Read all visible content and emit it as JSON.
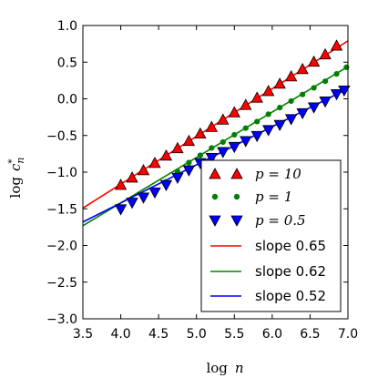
{
  "chart_data": {
    "type": "scatter",
    "xlabel": "log  n",
    "ylabel": "log c*n",
    "xlim": [
      3.5,
      7.0
    ],
    "ylim": [
      -3.0,
      1.0
    ],
    "xticks": [
      "3.5",
      "4.0",
      "4.5",
      "5.0",
      "5.5",
      "6.0",
      "6.5",
      "7.0"
    ],
    "yticks": [
      "1.0",
      "0.5",
      "0.0",
      "−0.5",
      "−1.0",
      "−1.5",
      "−2.0",
      "−2.5",
      "−3.0"
    ],
    "xtick_values": [
      3.5,
      4.0,
      4.5,
      5.0,
      5.5,
      6.0,
      6.5,
      7.0
    ],
    "ytick_values": [
      1.0,
      0.5,
      0.0,
      -0.5,
      -1.0,
      -1.5,
      -2.0,
      -2.5,
      -3.0
    ],
    "grid": false,
    "legend_position": "lower-right",
    "series": [
      {
        "name": "p = 10",
        "marker": "triangle-up",
        "color": "#ff0000",
        "x": [
          4.0,
          4.15,
          4.3,
          4.45,
          4.6,
          4.75,
          4.9,
          5.05,
          5.2,
          5.35,
          5.5,
          5.65,
          5.8,
          5.95,
          6.1,
          6.25,
          6.4,
          6.55,
          6.7,
          6.85
        ],
        "y": [
          -1.18,
          -1.08,
          -0.98,
          -0.88,
          -0.78,
          -0.68,
          -0.58,
          -0.48,
          -0.39,
          -0.29,
          -0.19,
          -0.09,
          0.01,
          0.1,
          0.2,
          0.3,
          0.4,
          0.5,
          0.6,
          0.72
        ]
      },
      {
        "name": "p = 1",
        "marker": "circle",
        "color": "#008000",
        "x": [
          4.0,
          4.15,
          4.3,
          4.45,
          4.6,
          4.75,
          4.9,
          5.05,
          5.2,
          5.35,
          5.5,
          5.65,
          5.8,
          5.95,
          6.1,
          6.25,
          6.4,
          6.55,
          6.7,
          6.85,
          6.98
        ],
        "y": [
          -1.5,
          -1.42,
          -1.35,
          -1.25,
          -1.13,
          -0.99,
          -0.87,
          -0.77,
          -0.67,
          -0.59,
          -0.49,
          -0.4,
          -0.31,
          -0.21,
          -0.12,
          -0.03,
          0.06,
          0.15,
          0.24,
          0.34,
          0.43
        ]
      },
      {
        "name": "p = 0.5",
        "marker": "triangle-down",
        "color": "#0000ff",
        "x": [
          4.0,
          4.15,
          4.3,
          4.45,
          4.6,
          4.75,
          4.9,
          5.05,
          5.2,
          5.35,
          5.5,
          5.65,
          5.8,
          5.95,
          6.1,
          6.25,
          6.4,
          6.55,
          6.7,
          6.85,
          6.95
        ],
        "y": [
          -1.5,
          -1.41,
          -1.34,
          -1.27,
          -1.17,
          -1.07,
          -0.97,
          -0.87,
          -0.8,
          -0.72,
          -0.65,
          -0.57,
          -0.5,
          -0.42,
          -0.35,
          -0.27,
          -0.19,
          -0.11,
          -0.03,
          0.07,
          0.12
        ]
      }
    ],
    "fits": [
      {
        "name": "slope 0.65",
        "color": "#ff0000",
        "x": [
          3.5,
          7.0
        ],
        "y": [
          -1.49,
          0.79
        ]
      },
      {
        "name": "slope 0.62",
        "color": "#008000",
        "x": [
          3.5,
          7.0
        ],
        "y": [
          -1.73,
          0.44
        ]
      },
      {
        "name": "slope 0.52",
        "color": "#0000ff",
        "x": [
          3.5,
          7.0
        ],
        "y": [
          -1.68,
          0.14
        ]
      }
    ]
  }
}
